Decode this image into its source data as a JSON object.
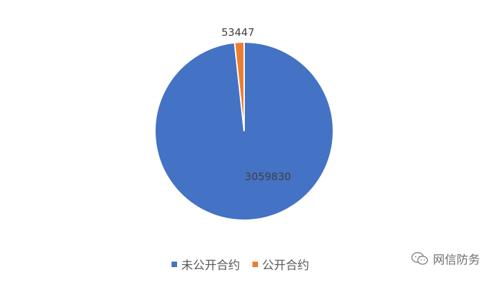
{
  "chart_data": {
    "type": "pie",
    "slices": [
      {
        "name": "未公开合约",
        "value": 3059830,
        "label": "3059830",
        "color": "#4472c4"
      },
      {
        "name": "公开合约",
        "value": 53447,
        "label": "53447",
        "color": "#ed7d31"
      }
    ],
    "legend": {
      "position": "bottom"
    }
  },
  "watermark": {
    "text": "网信防务",
    "icon": "wechat-icon"
  }
}
